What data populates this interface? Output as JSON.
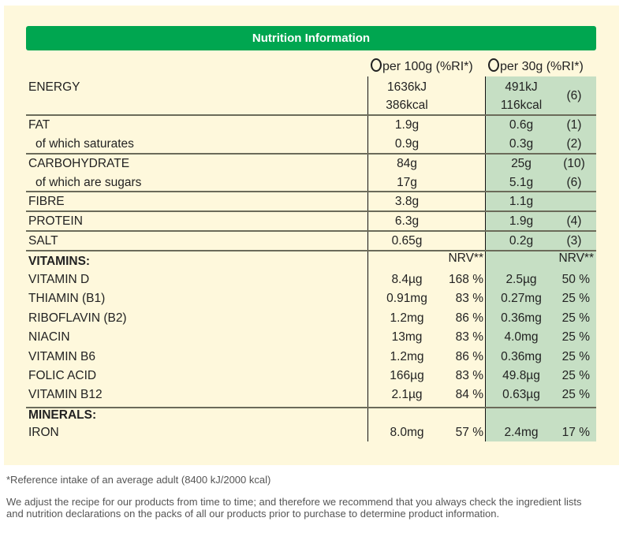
{
  "title": "Nutrition Information",
  "columns": {
    "per100": "per 100g (%RI*)",
    "per30": "per 30g (%RI*)"
  },
  "colors": {
    "header": "#00a650",
    "panel": "#fef8dc",
    "serving_column": "#c6dfc4"
  },
  "energy": {
    "label": "ENERGY",
    "per100_kj": "1636kJ",
    "per100_kcal": "386kcal",
    "per30_kj": "491kJ",
    "per30_kcal": "116kcal",
    "ri": "(6)"
  },
  "nutrients": [
    {
      "label": "FAT",
      "per100": "1.9g",
      "per30": "0.6g",
      "ri": "(1)"
    },
    {
      "label": "of which saturates",
      "per100": "0.9g",
      "per30": "0.3g",
      "ri": "(2)"
    },
    {
      "label": "CARBOHYDRATE",
      "per100": "84g",
      "per30": "25g",
      "ri": "(10)"
    },
    {
      "label": "of which are sugars",
      "per100": "17g",
      "per30": "5.1g",
      "ri": "(6)"
    },
    {
      "label": "FIBRE",
      "per100": "3.8g",
      "per30": "1.1g",
      "ri": ""
    },
    {
      "label": "PROTEIN",
      "per100": "6.3g",
      "per30": "1.9g",
      "ri": "(4)"
    },
    {
      "label": "SALT",
      "per100": "0.65g",
      "per30": "0.2g",
      "ri": "(3)"
    }
  ],
  "vitamins": {
    "heading": "VITAMINS:",
    "nrv_label": "NRV**",
    "rows": [
      {
        "label": "VITAMIN D",
        "per100": "8.4µg",
        "nrv100": "168 %",
        "per30": "2.5µg",
        "nrv30": "50 %"
      },
      {
        "label": "THIAMIN (B1)",
        "per100": "0.91mg",
        "nrv100": "83 %",
        "per30": "0.27mg",
        "nrv30": "25 %"
      },
      {
        "label": "RIBOFLAVIN (B2)",
        "per100": "1.2mg",
        "nrv100": "86 %",
        "per30": "0.36mg",
        "nrv30": "25 %"
      },
      {
        "label": "NIACIN",
        "per100": "13mg",
        "nrv100": "83 %",
        "per30": "4.0mg",
        "nrv30": "25 %"
      },
      {
        "label": "VITAMIN B6",
        "per100": "1.2mg",
        "nrv100": "86 %",
        "per30": "0.36mg",
        "nrv30": "25 %"
      },
      {
        "label": "FOLIC ACID",
        "per100": "166µg",
        "nrv100": "83 %",
        "per30": "49.8µg",
        "nrv30": "25 %"
      },
      {
        "label": "VITAMIN B12",
        "per100": "2.1µg",
        "nrv100": "84 %",
        "per30": "0.63µg",
        "nrv30": "25 %"
      }
    ]
  },
  "minerals": {
    "heading": "MINERALS:",
    "rows": [
      {
        "label": "IRON",
        "per100": "8.0mg",
        "nrv100": "57 %",
        "per30": "2.4mg",
        "nrv30": "17 %"
      }
    ]
  },
  "footnotes": {
    "ri": "*Reference intake of an average adult (8400 kJ/2000 kcal)",
    "disclaimer": "We adjust the recipe for our products from time to time; and therefore we recommend that you always check the ingredient lists and nutrition declarations on the packs of all our products prior to purchase to determine product information."
  }
}
